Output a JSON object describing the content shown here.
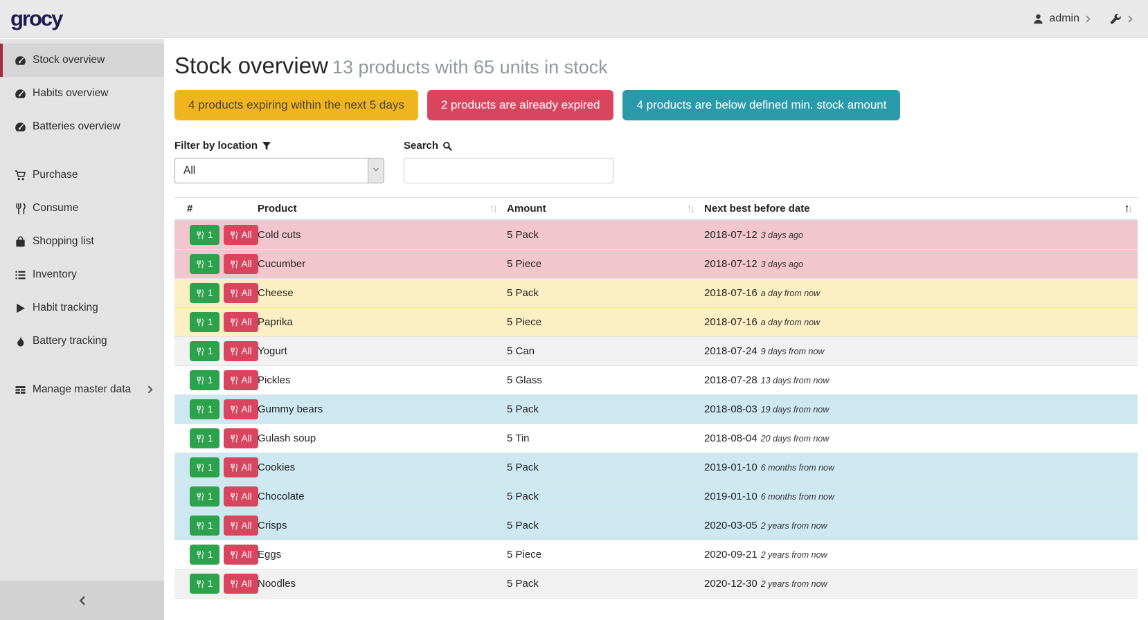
{
  "topbar": {
    "logo": "grocy",
    "user_label": "admin",
    "user_icon": "user",
    "settings_icon": "wrench"
  },
  "sidebar": {
    "items": [
      {
        "id": "stock-overview",
        "label": "Stock overview",
        "icon": "tachometer",
        "active": true
      },
      {
        "id": "habits-overview",
        "label": "Habits overview",
        "icon": "tachometer"
      },
      {
        "id": "batteries-overview",
        "label": "Batteries overview",
        "icon": "tachometer"
      },
      {
        "id": "purchase",
        "label": "Purchase",
        "icon": "cart",
        "gap_before": true
      },
      {
        "id": "consume",
        "label": "Consume",
        "icon": "utensils"
      },
      {
        "id": "shopping-list",
        "label": "Shopping list",
        "icon": "shopping-bag"
      },
      {
        "id": "inventory",
        "label": "Inventory",
        "icon": "list"
      },
      {
        "id": "habit-tracking",
        "label": "Habit tracking",
        "icon": "play"
      },
      {
        "id": "battery-tracking",
        "label": "Battery tracking",
        "icon": "flame"
      },
      {
        "id": "manage-master-data",
        "label": "Manage master data",
        "icon": "table",
        "gap_before": true,
        "has_submenu": true
      }
    ],
    "collapse_icon": "chevron-left"
  },
  "page": {
    "title": "Stock overview",
    "subtitle": "13 products with 65 units in stock",
    "alerts": [
      {
        "id": "expiring",
        "label": "4 products expiring within the next 5 days",
        "bg": "#f0b41f",
        "fg": "#49443a"
      },
      {
        "id": "expired",
        "label": "2 products are already expired",
        "bg": "#d9455f",
        "fg": "#ffffff"
      },
      {
        "id": "below-min",
        "label": "4 products are below defined min. stock amount",
        "bg": "#2a99aa",
        "fg": "#ffffff"
      }
    ],
    "filter": {
      "label": "Filter by location",
      "icon": "filter",
      "value": "All"
    },
    "search": {
      "label": "Search",
      "icon": "search",
      "value": ""
    }
  },
  "table": {
    "columns": [
      {
        "label": "#",
        "sortable": false
      },
      {
        "label": "Product",
        "sortable": true
      },
      {
        "label": "Amount",
        "sortable": true
      },
      {
        "label": "Next best before date",
        "sortable": true,
        "sorted": "asc"
      }
    ],
    "consume_buttons": {
      "one": "1",
      "all": "All",
      "icon": "utensils"
    },
    "rows": [
      {
        "product": "Cold cuts",
        "amount": "5 Pack",
        "best_before": "2018-07-12",
        "relative": "3 days ago",
        "state": "expired"
      },
      {
        "product": "Cucumber",
        "amount": "5 Piece",
        "best_before": "2018-07-12",
        "relative": "3 days ago",
        "state": "expired"
      },
      {
        "product": "Cheese",
        "amount": "5 Pack",
        "best_before": "2018-07-16",
        "relative": "a day from now",
        "state": "expiring"
      },
      {
        "product": "Paprika",
        "amount": "5 Piece",
        "best_before": "2018-07-16",
        "relative": "a day from now",
        "state": "expiring"
      },
      {
        "product": "Yogurt",
        "amount": "5 Can",
        "best_before": "2018-07-24",
        "relative": "9 days from now",
        "state": ""
      },
      {
        "product": "Pickles",
        "amount": "5 Glass",
        "best_before": "2018-07-28",
        "relative": "13 days from now",
        "state": ""
      },
      {
        "product": "Gummy bears",
        "amount": "5 Pack",
        "best_before": "2018-08-03",
        "relative": "19 days from now",
        "state": "below-min"
      },
      {
        "product": "Gulash soup",
        "amount": "5 Tin",
        "best_before": "2018-08-04",
        "relative": "20 days from now",
        "state": ""
      },
      {
        "product": "Cookies",
        "amount": "5 Pack",
        "best_before": "2019-01-10",
        "relative": "6 months from now",
        "state": "below-min"
      },
      {
        "product": "Chocolate",
        "amount": "5 Pack",
        "best_before": "2019-01-10",
        "relative": "6 months from now",
        "state": "below-min"
      },
      {
        "product": "Crisps",
        "amount": "5 Pack",
        "best_before": "2020-03-05",
        "relative": "2 years from now",
        "state": "below-min"
      },
      {
        "product": "Eggs",
        "amount": "5 Piece",
        "best_before": "2020-09-21",
        "relative": "2 years from now",
        "state": ""
      },
      {
        "product": "Noodles",
        "amount": "5 Pack",
        "best_before": "2020-12-30",
        "relative": "2 years from now",
        "state": ""
      }
    ]
  },
  "theme": {
    "logo_color": "#201c53",
    "sidebar_active_accent": "#a22c3a",
    "consume_one_green": "#2ba24b",
    "consume_all_red": "#d9455f",
    "row_expired": "#f2c6ce",
    "row_expiring": "#fbefc3",
    "row_below_min": "#cde8f0"
  }
}
